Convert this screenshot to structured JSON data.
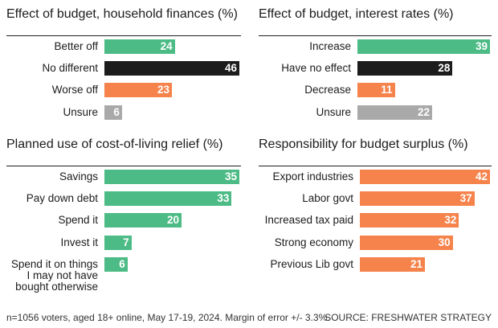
{
  "chart_data": [
    {
      "type": "bar",
      "title": "Effect of budget, household finances (%)",
      "categories": [
        "Better off",
        "No different",
        "Worse off",
        "Unsure"
      ],
      "values": [
        24,
        46,
        23,
        6
      ],
      "colors": [
        "#4dbb86",
        "#1c1c1c",
        "#f5834b",
        "#a9a9a9"
      ]
    },
    {
      "type": "bar",
      "title": "Effect of budget, interest rates (%)",
      "categories": [
        "Increase",
        "Have no effect",
        "Decrease",
        "Unsure"
      ],
      "values": [
        39,
        28,
        11,
        22
      ],
      "colors": [
        "#4dbb86",
        "#1c1c1c",
        "#f5834b",
        "#a9a9a9"
      ]
    },
    {
      "type": "bar",
      "title": "Planned use of cost-of-living relief (%)",
      "categories": [
        "Savings",
        "Pay down debt",
        "Spend it",
        "Invest it",
        "Spend it on things I may not have bought otherwise"
      ],
      "values": [
        35,
        33,
        20,
        7,
        6
      ],
      "colors": [
        "#4dbb86",
        "#4dbb86",
        "#4dbb86",
        "#4dbb86",
        "#4dbb86"
      ]
    },
    {
      "type": "bar",
      "title": "Responsibility for budget surplus (%)",
      "categories": [
        "Export industries",
        "Labor govt",
        "Increased tax paid",
        "Strong economy",
        "Previous Lib govt"
      ],
      "values": [
        42,
        37,
        32,
        30,
        21
      ],
      "colors": [
        "#f5834b",
        "#f5834b",
        "#f5834b",
        "#f5834b",
        "#f5834b"
      ]
    }
  ],
  "footer": {
    "note": "n=1056 voters, aged 18+ online, May 17-19, 2024. Margin of error +/- 3.3%.",
    "source": "SOURCE: FRESHWATER STRATEGY"
  }
}
